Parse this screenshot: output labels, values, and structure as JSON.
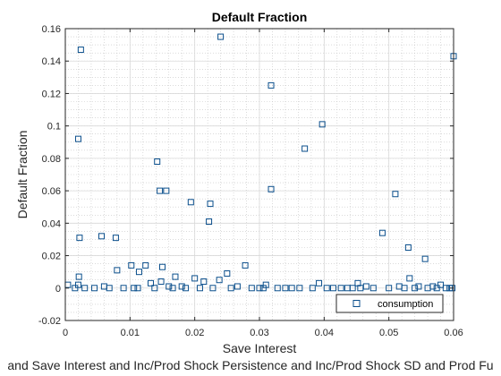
{
  "chart_data": {
    "type": "scatter",
    "title": "Default Fraction",
    "xlabel": "Save Interest",
    "ylabel": "Default Fraction",
    "caption": "and Save Interest and Inc/Prod Shock Persistence and Inc/Prod Shock SD and Prod Fu",
    "xlim": [
      0,
      0.06
    ],
    "ylim": [
      -0.02,
      0.16
    ],
    "x_ticks": [
      "0",
      "0.01",
      "0.02",
      "0.03",
      "0.04",
      "0.05",
      "0.06"
    ],
    "y_ticks": [
      "-0.02",
      "0",
      "0.02",
      "0.04",
      "0.06",
      "0.08",
      "0.1",
      "0.12",
      "0.14",
      "0.16"
    ],
    "grid": true,
    "minor_grid": true,
    "legend_position": "bottom-right",
    "marker": "square",
    "color": "#0b4f8c",
    "series": [
      {
        "name": "consumption",
        "x": [
          0.0024,
          0.002,
          0.0022,
          0.024,
          0.0318,
          0.06,
          0.0397,
          0.037,
          0.0142,
          0.0146,
          0.0156,
          0.0318,
          0.0224,
          0.0194,
          0.051,
          0.0222,
          0.0056,
          0.0078,
          0.0021,
          0.049,
          0.053,
          0.0556,
          0.008,
          0.0102,
          0.0124,
          0.0278,
          0.015,
          0.0114,
          0.017,
          0.025,
          0.02,
          0.0238,
          0.0214,
          0.0148,
          0.0532,
          0.002,
          0.0132,
          0.0392,
          0.031,
          0.0452,
          0.016,
          0.018,
          0.0266,
          0.0306,
          0.034,
          0.0404,
          0.0436,
          0.0465,
          0.0516,
          0.0546,
          0.0568,
          0.058,
          0.0598,
          0.0004,
          0.0015,
          0.003,
          0.0045,
          0.006,
          0.0068,
          0.009,
          0.0106,
          0.0112,
          0.0138,
          0.0166,
          0.0186,
          0.0208,
          0.0228,
          0.0256,
          0.0288,
          0.03,
          0.0328,
          0.035,
          0.0362,
          0.0382,
          0.0414,
          0.0426,
          0.0444,
          0.0456,
          0.0476,
          0.05,
          0.0524,
          0.054,
          0.056,
          0.0574,
          0.0588,
          0.0594
        ],
        "y": [
          0.147,
          0.092,
          0.031,
          0.155,
          0.125,
          0.143,
          0.101,
          0.086,
          0.078,
          0.06,
          0.06,
          0.061,
          0.052,
          0.053,
          0.058,
          0.041,
          0.032,
          0.031,
          0.007,
          0.034,
          0.025,
          0.018,
          0.011,
          0.014,
          0.014,
          0.014,
          0.013,
          0.01,
          0.007,
          0.009,
          0.006,
          0.005,
          0.004,
          0.004,
          0.006,
          0.002,
          0.003,
          0.003,
          0.002,
          0.003,
          0.001,
          0.001,
          0.001,
          0.0,
          0.0,
          0.0,
          0.0,
          0.001,
          0.001,
          0.001,
          0.001,
          0.002,
          0.0,
          0.002,
          0.0,
          0.0,
          0.0,
          0.001,
          0.0,
          0.0,
          0.0,
          0.0,
          0.0,
          0.0,
          0.0,
          0.0,
          0.0,
          0.0,
          0.0,
          0.0,
          0.0,
          0.0,
          0.0,
          0.0,
          0.0,
          0.0,
          0.0,
          0.0,
          0.0,
          0.0,
          0.0,
          0.0,
          0.0,
          0.0,
          0.0,
          0.0
        ]
      }
    ]
  }
}
